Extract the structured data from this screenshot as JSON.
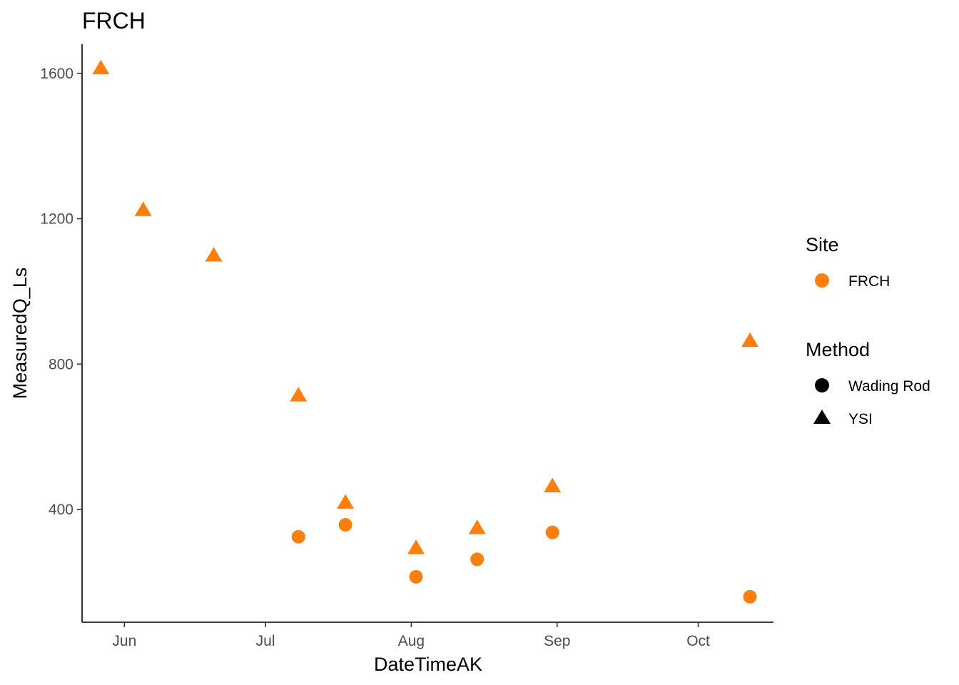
{
  "chart_data": {
    "type": "scatter",
    "title": "FRCH",
    "xlabel": "DateTimeAK",
    "ylabel": "MeasuredQ_Ls",
    "x_ticks": [
      "Jun",
      "Jul",
      "Aug",
      "Sep",
      "Oct"
    ],
    "y_ticks": [
      400,
      800,
      1200,
      1600
    ],
    "xlim": [
      "2019-05-23",
      "2019-10-17"
    ],
    "ylim": [
      90,
      1680
    ],
    "grid": false,
    "legend_position": "right",
    "point_color": "#ff7f0e",
    "legend": {
      "color_title": "Site",
      "color_entries": [
        {
          "label": "FRCH",
          "color": "#ff7f0e"
        }
      ],
      "shape_title": "Method",
      "shape_entries": [
        {
          "label": "Wading Rod",
          "shape": "circle"
        },
        {
          "label": "YSI",
          "shape": "triangle"
        }
      ]
    },
    "series": [
      {
        "method": "YSI",
        "shape": "triangle",
        "points": [
          {
            "x": "2019-05-27",
            "y": 1615
          },
          {
            "x": "2019-06-05",
            "y": 1225
          },
          {
            "x": "2019-06-20",
            "y": 1100
          },
          {
            "x": "2019-07-08",
            "y": 715
          },
          {
            "x": "2019-07-18",
            "y": 420
          },
          {
            "x": "2019-08-02",
            "y": 295
          },
          {
            "x": "2019-08-15",
            "y": 350
          },
          {
            "x": "2019-08-31",
            "y": 465
          },
          {
            "x": "2019-10-12",
            "y": 865
          }
        ]
      },
      {
        "method": "Wading Rod",
        "shape": "circle",
        "points": [
          {
            "x": "2019-07-08",
            "y": 325
          },
          {
            "x": "2019-07-18",
            "y": 358
          },
          {
            "x": "2019-08-02",
            "y": 215
          },
          {
            "x": "2019-08-15",
            "y": 263
          },
          {
            "x": "2019-08-31",
            "y": 337
          },
          {
            "x": "2019-10-12",
            "y": 160
          }
        ]
      }
    ]
  }
}
